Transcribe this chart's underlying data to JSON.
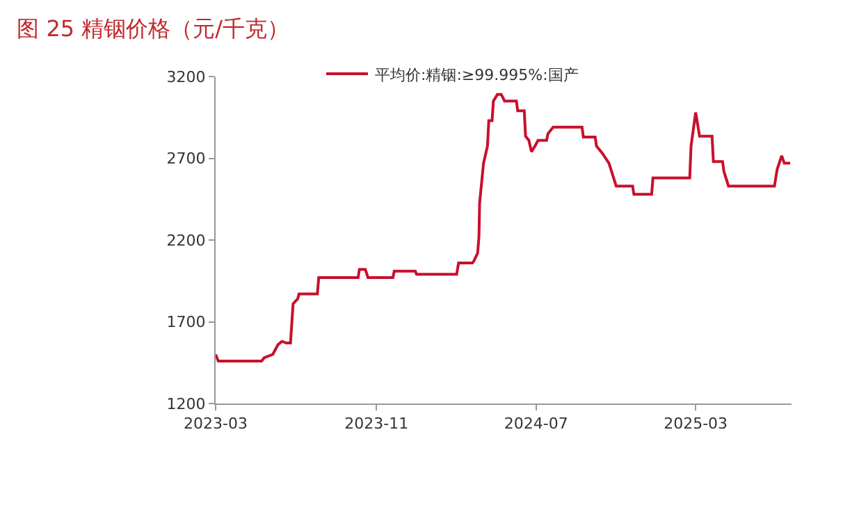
{
  "chart_data": {
    "type": "line",
    "title": "图 25 精铟价格（元/千克）",
    "x": [
      "2023-03-01",
      "2023-03-05",
      "2023-05-10",
      "2023-05-14",
      "2023-05-27",
      "2023-06-04",
      "2023-06-10",
      "2023-06-17",
      "2023-06-23",
      "2023-06-27",
      "2023-07-04",
      "2023-07-06",
      "2023-08-03",
      "2023-08-05",
      "2023-10-04",
      "2023-10-06",
      "2023-10-15",
      "2023-10-19",
      "2023-11-26",
      "2023-11-28",
      "2023-12-30",
      "2024-01-01",
      "2024-03-02",
      "2024-03-05",
      "2024-03-26",
      "2024-03-28",
      "2024-04-03",
      "2024-04-05",
      "2024-04-06",
      "2024-04-12",
      "2024-04-18",
      "2024-04-20",
      "2024-04-25",
      "2024-04-27",
      "2024-05-03",
      "2024-05-09",
      "2024-05-14",
      "2024-06-01",
      "2024-06-03",
      "2024-06-13",
      "2024-06-15",
      "2024-06-20",
      "2024-06-24",
      "2024-06-30",
      "2024-07-04",
      "2024-07-17",
      "2024-07-19",
      "2024-07-27",
      "2024-09-09",
      "2024-09-11",
      "2024-09-29",
      "2024-10-01",
      "2024-10-10",
      "2024-10-20",
      "2024-10-31",
      "2024-11-25",
      "2024-11-27",
      "2024-12-24",
      "2024-12-26",
      "2025-02-20",
      "2025-02-22",
      "2025-03-01",
      "2025-03-07",
      "2025-03-26",
      "2025-03-28",
      "2025-04-11",
      "2025-04-13",
      "2025-04-20",
      "2025-06-29",
      "2025-07-03",
      "2025-07-10",
      "2025-07-14",
      "2025-07-23"
    ],
    "series": [
      {
        "name": "平均价:精铟:≥99.995%:国产",
        "color": "#c8102e",
        "values": [
          1500,
          1460,
          1460,
          1480,
          1500,
          1560,
          1580,
          1570,
          1570,
          1810,
          1840,
          1870,
          1870,
          1970,
          1970,
          2020,
          2020,
          1970,
          1970,
          2010,
          2010,
          1990,
          1990,
          2060,
          2060,
          2070,
          2120,
          2220,
          2425,
          2670,
          2775,
          2930,
          2930,
          3050,
          3090,
          3090,
          3050,
          3050,
          2990,
          2990,
          2835,
          2810,
          2740,
          2780,
          2810,
          2810,
          2850,
          2890,
          2890,
          2830,
          2830,
          2775,
          2730,
          2670,
          2530,
          2530,
          2480,
          2480,
          2580,
          2580,
          2775,
          2980,
          2835,
          2835,
          2680,
          2680,
          2620,
          2530,
          2530,
          2630,
          2715,
          2670,
          2670
        ]
      }
    ],
    "xlim": [
      "2023-03-01",
      "2025-07-25"
    ],
    "xticks": [
      {
        "value": "2023-03-01",
        "label": "2023-03"
      },
      {
        "value": "2023-11-01",
        "label": "2023-11"
      },
      {
        "value": "2024-07-01",
        "label": "2024-07"
      },
      {
        "value": "2025-03-01",
        "label": "2025-03"
      }
    ],
    "ylim": [
      1200,
      3200
    ],
    "yticks": [
      1200,
      1700,
      2200,
      2700,
      3200
    ],
    "legend": "top",
    "marker": "none",
    "line_style": "solid"
  }
}
